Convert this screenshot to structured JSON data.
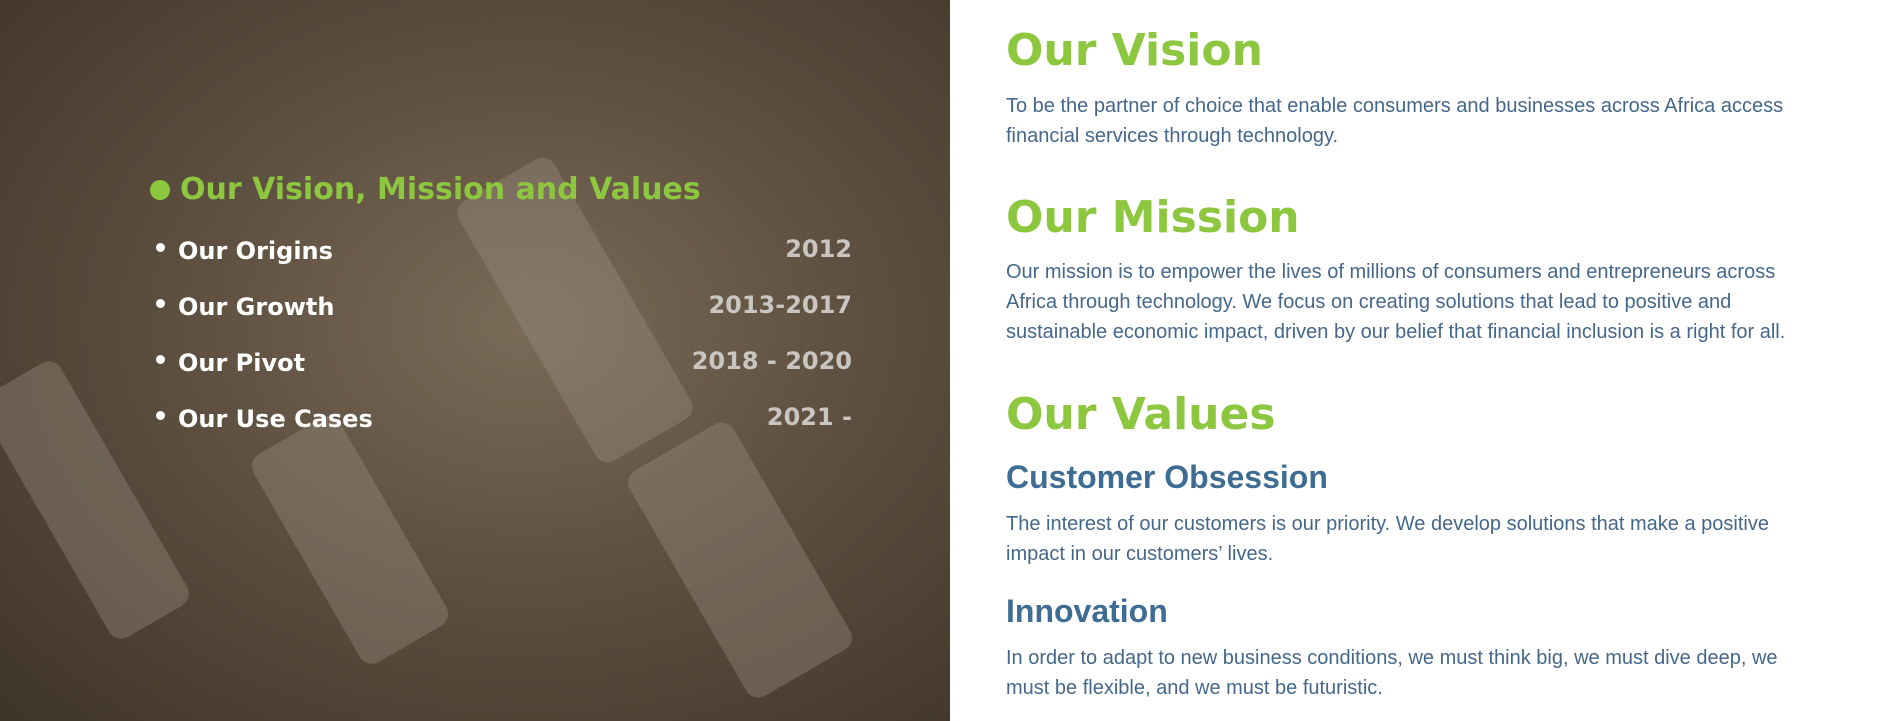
{
  "nav": {
    "title": "Our Vision, Mission and Values",
    "items": [
      {
        "label": "Our Origins",
        "years": "2012"
      },
      {
        "label": "Our Growth",
        "years": "2013-2017"
      },
      {
        "label": "Our Pivot",
        "years": "2018 - 2020"
      },
      {
        "label": "Our Use Cases",
        "years": "2021 -"
      }
    ]
  },
  "vision": {
    "heading": "Our Vision",
    "text": "To be the partner of choice that enable consumers and businesses across Africa access financial services through technology."
  },
  "mission": {
    "heading": "Our Mission",
    "text": "Our mission is to empower the lives of millions of consumers and entrepreneurs across Africa through technology. We focus on creating solutions that lead to positive and sustainable economic impact, driven by our belief that financial inclusion is a right for all."
  },
  "values": {
    "heading": "Our Values",
    "items": [
      {
        "title": "Customer Obsession",
        "text": "The interest of our customers is our priority. We develop solutions that make a positive impact in our customers’ lives."
      },
      {
        "title": "Innovation",
        "text": "In order to adapt to new business conditions, we must think big, we must dive deep, we must be flexible, and we must be futuristic."
      }
    ]
  }
}
